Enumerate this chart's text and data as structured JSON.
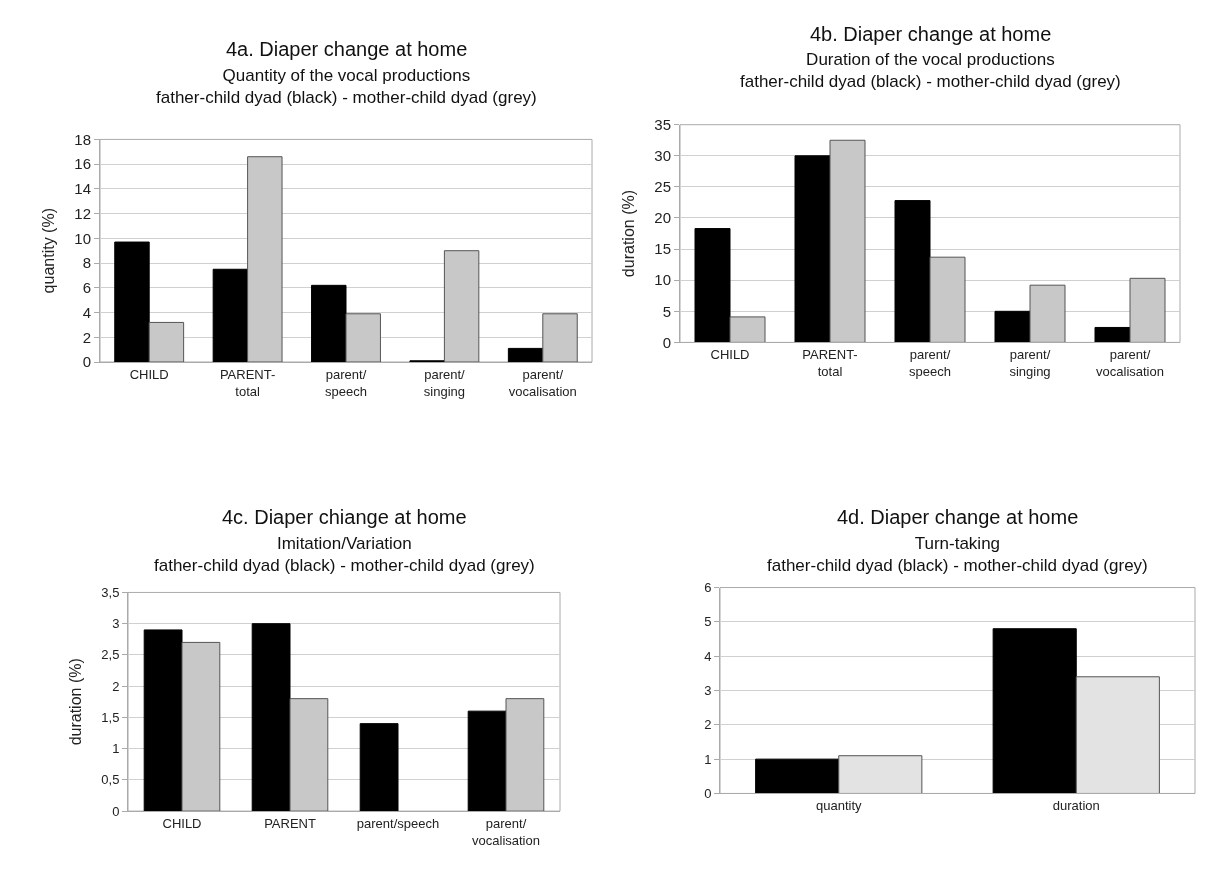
{
  "chart_data": [
    {
      "type": "bar",
      "title": "4a. Diaper change at home",
      "subtitle": "Quantity of the vocal productions\nfather-child dyad (black) - mother-child dyad (grey)",
      "ylabel": "quantity (%)",
      "categories": [
        "CHILD",
        "PARENT-\ntotal",
        "parent/\nspeech",
        "parent/\nsinging",
        "parent/\nvocalisation"
      ],
      "series": [
        {
          "color": "#000000",
          "values": [
            9.7,
            7.5,
            6.2,
            0.1,
            1.1
          ]
        },
        {
          "color": "#c8c8c8",
          "values": [
            3.2,
            16.6,
            3.9,
            9.0,
            3.9
          ]
        }
      ],
      "ylim": [
        0,
        18
      ],
      "yticks": [
        0,
        2,
        4,
        6,
        8,
        10,
        12,
        14,
        16,
        18
      ],
      "grid": "y"
    },
    {
      "type": "bar",
      "title": "4b. Diaper change at home",
      "subtitle": "Duration of the vocal productions\nfather-child dyad (black) - mother-child dyad (grey)",
      "ylabel": "duration (%)",
      "categories": [
        "CHILD",
        "PARENT-\ntotal",
        "parent/\nspeech",
        "parent/\nsinging",
        "parent/\nvocalisation"
      ],
      "series": [
        {
          "color": "#000000",
          "values": [
            18.3,
            30,
            22.8,
            5,
            2.4
          ]
        },
        {
          "color": "#c8c8c8",
          "values": [
            4.1,
            32.5,
            13.7,
            9.2,
            10.3
          ]
        }
      ],
      "ylim": [
        0,
        35
      ],
      "yticks": [
        0,
        5,
        10,
        15,
        20,
        25,
        30,
        35
      ],
      "grid": "y"
    },
    {
      "type": "bar",
      "title": "4c. Diaper chiange at home",
      "subtitle": "Imitation/Variation\nfather-child dyad (black) - mother-child dyad (grey)",
      "ylabel": "duration (%)",
      "categories": [
        "CHILD",
        "PARENT",
        "parent/speech",
        "parent/\nvocalisation"
      ],
      "series": [
        {
          "color": "#000000",
          "values": [
            2.9,
            3.0,
            1.4,
            1.6
          ]
        },
        {
          "color": "#c8c8c8",
          "values": [
            2.7,
            1.8,
            0,
            1.8
          ]
        }
      ],
      "ylim": [
        0,
        3.5
      ],
      "yticks": [
        0,
        {
          "value": 0.5,
          "label": "0,5"
        },
        1,
        {
          "value": 1.5,
          "label": "1,5"
        },
        2,
        {
          "value": 2.5,
          "label": "2,5"
        },
        3,
        {
          "value": 3.5,
          "label": "3,5"
        }
      ],
      "grid": "y"
    },
    {
      "type": "bar",
      "title": "4d. Diaper change at home",
      "subtitle": "Turn-taking\nfather-child dyad (black) - mother-child dyad (grey)",
      "categories": [
        "quantity",
        "duration"
      ],
      "series": [
        {
          "color": "#000000",
          "values": [
            1.0,
            4.8
          ]
        },
        {
          "color": "#e3e3e3",
          "values": [
            1.1,
            3.4
          ]
        }
      ],
      "ylim": [
        0,
        6
      ],
      "yticks": [
        0,
        1,
        2,
        3,
        4,
        5,
        6
      ],
      "grid": "y"
    }
  ]
}
